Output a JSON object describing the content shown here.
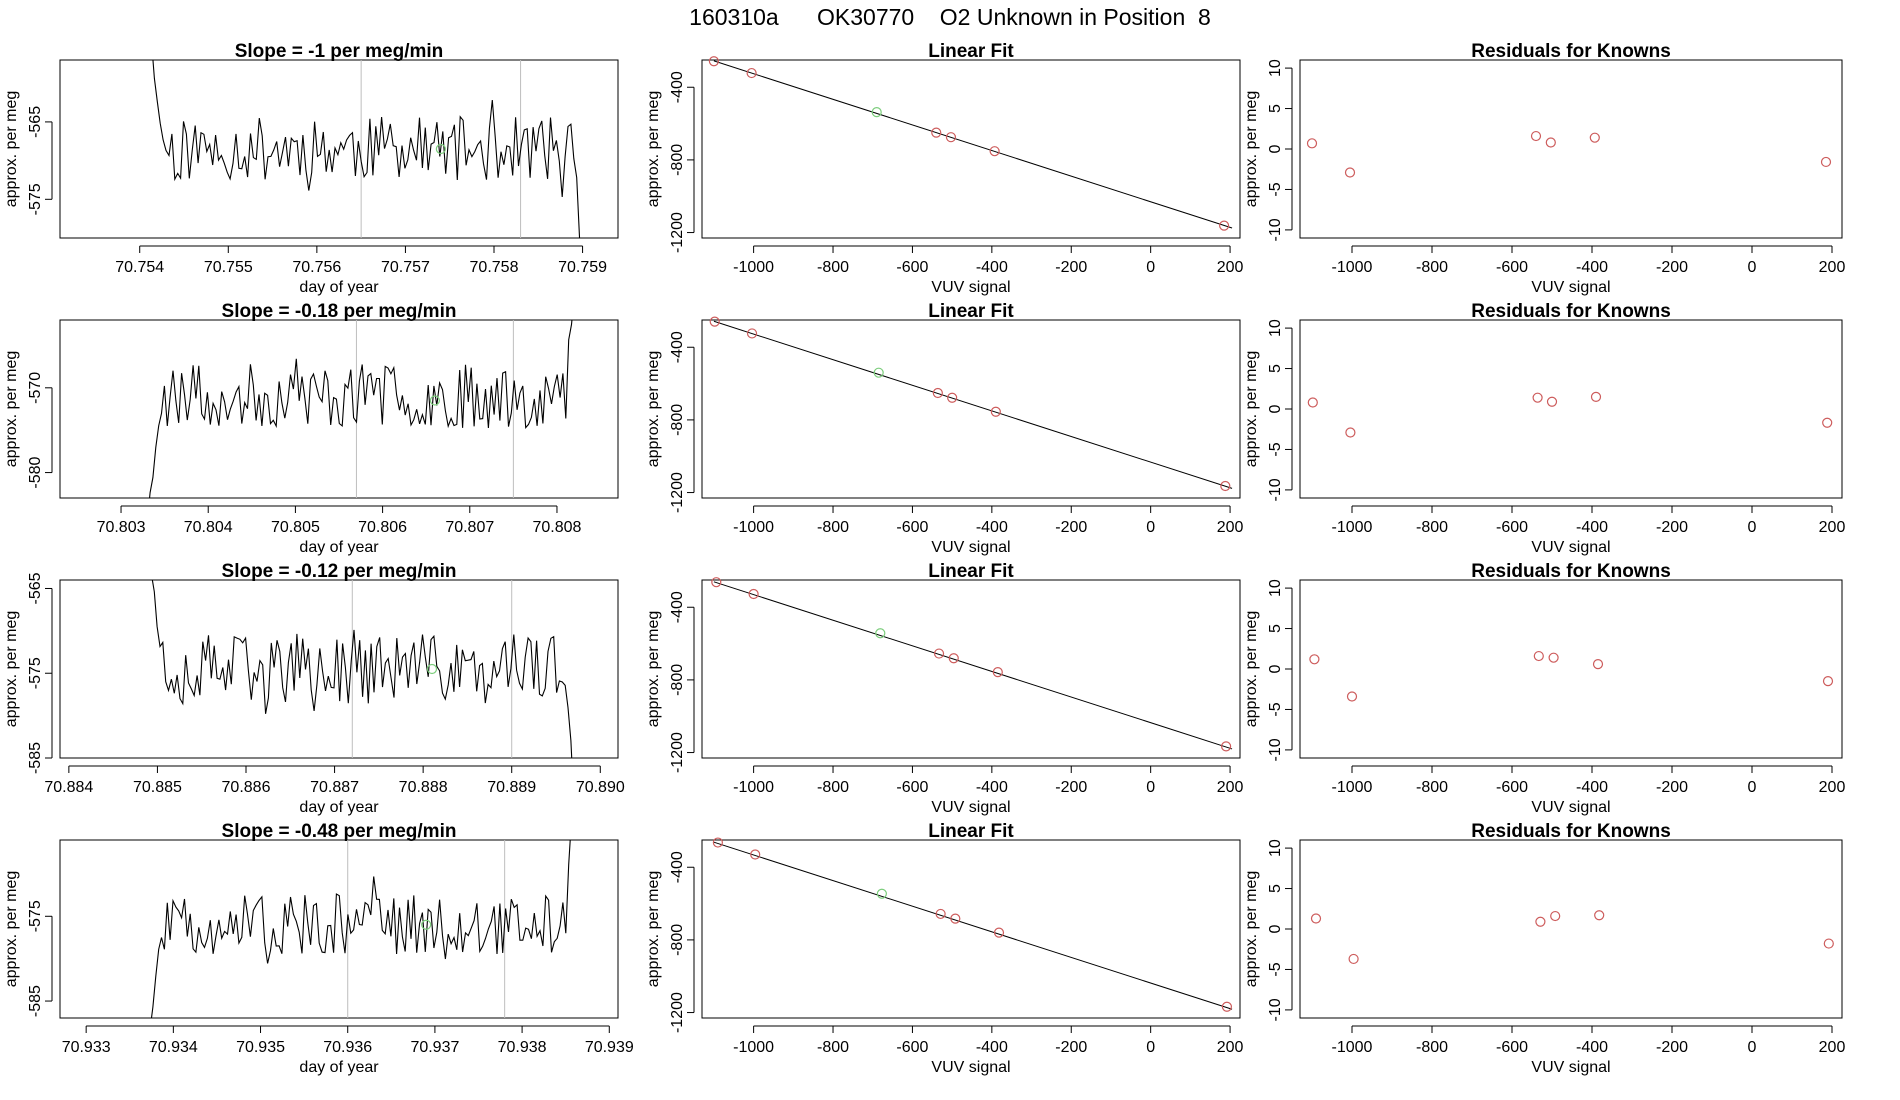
{
  "header": {
    "title": "160310a      OK30770    O2 Unknown in Position  8"
  },
  "colors": {
    "line": "#000000",
    "frame": "#000000",
    "vline": "#bebebe",
    "known": "#cd5c5c",
    "unknown": "#7ccd7c"
  },
  "rows": [
    {
      "time_series": {
        "title": "Slope =  -1  per meg/min",
        "xlabel": "day of year",
        "ylabel": "approx. per meg",
        "xticks": [
          "70.754",
          "70.755",
          "70.756",
          "70.757",
          "70.758",
          "70.759"
        ],
        "yticks": [
          "-565",
          "-575"
        ]
      },
      "fit": {
        "title": "Linear Fit",
        "xlabel": "VUV signal",
        "ylabel": "approx. per meg",
        "xticks": [
          "-1000",
          "-800",
          "-600",
          "-400",
          "-200",
          "0",
          "200"
        ],
        "yticks": [
          "-400",
          "-800",
          "-1200"
        ]
      },
      "residuals": {
        "title": "Residuals for Knowns",
        "xlabel": "VUV signal",
        "ylabel": "approx. per meg",
        "xticks": [
          "-1000",
          "-800",
          "-600",
          "-400",
          "-200",
          "0",
          "200"
        ],
        "yticks": [
          "10",
          "5",
          "0",
          "-5",
          "-10"
        ]
      }
    },
    {
      "time_series": {
        "title": "Slope =  -0.18  per meg/min",
        "xlabel": "day of year",
        "ylabel": "approx. per meg",
        "xticks": [
          "70.803",
          "70.804",
          "70.805",
          "70.806",
          "70.807",
          "70.808"
        ],
        "yticks": [
          "-570",
          "-580"
        ]
      },
      "fit": {
        "title": "Linear Fit",
        "xlabel": "VUV signal",
        "ylabel": "approx. per meg",
        "xticks": [
          "-1000",
          "-800",
          "-600",
          "-400",
          "-200",
          "0",
          "200"
        ],
        "yticks": [
          "-400",
          "-800",
          "-1200"
        ]
      },
      "residuals": {
        "title": "Residuals for Knowns",
        "xlabel": "VUV signal",
        "ylabel": "approx. per meg",
        "xticks": [
          "-1000",
          "-800",
          "-600",
          "-400",
          "-200",
          "0",
          "200"
        ],
        "yticks": [
          "10",
          "5",
          "0",
          "-5",
          "-10"
        ]
      }
    },
    {
      "time_series": {
        "title": "Slope =  -0.12  per meg/min",
        "xlabel": "day of year",
        "ylabel": "approx. per meg",
        "xticks": [
          "70.884",
          "70.885",
          "70.886",
          "70.887",
          "70.888",
          "70.889",
          "70.890"
        ],
        "yticks": [
          "-565",
          "-575",
          "-585"
        ]
      },
      "fit": {
        "title": "Linear Fit",
        "xlabel": "VUV signal",
        "ylabel": "approx. per meg",
        "xticks": [
          "-1000",
          "-800",
          "-600",
          "-400",
          "-200",
          "0",
          "200"
        ],
        "yticks": [
          "-400",
          "-800",
          "-1200"
        ]
      },
      "residuals": {
        "title": "Residuals for Knowns",
        "xlabel": "VUV signal",
        "ylabel": "approx. per meg",
        "xticks": [
          "-1000",
          "-800",
          "-600",
          "-400",
          "-200",
          "0",
          "200"
        ],
        "yticks": [
          "10",
          "5",
          "0",
          "-5",
          "-10"
        ]
      }
    },
    {
      "time_series": {
        "title": "Slope =  -0.48  per meg/min",
        "xlabel": "day of year",
        "ylabel": "approx. per meg",
        "xticks": [
          "70.933",
          "70.934",
          "70.935",
          "70.936",
          "70.937",
          "70.938",
          "70.939"
        ],
        "yticks": [
          "-575",
          "-585"
        ]
      },
      "fit": {
        "title": "Linear Fit",
        "xlabel": "VUV signal",
        "ylabel": "approx. per meg",
        "xticks": [
          "-1000",
          "-800",
          "-600",
          "-400",
          "-200",
          "0",
          "200"
        ],
        "yticks": [
          "-400",
          "-800",
          "-1200"
        ]
      },
      "residuals": {
        "title": "Residuals for Knowns",
        "xlabel": "VUV signal",
        "ylabel": "approx. per meg",
        "xticks": [
          "-1000",
          "-800",
          "-600",
          "-400",
          "-200",
          "0",
          "200"
        ],
        "yticks": [
          "10",
          "5",
          "0",
          "-5",
          "-10"
        ]
      }
    }
  ],
  "chart_data": [
    {
      "type": "line",
      "title": "Slope =  -1  per meg/min",
      "xlabel": "day of year",
      "ylabel": "approx. per meg",
      "xlim": [
        70.7531,
        70.7594
      ],
      "ylim": [
        -580,
        -557
      ],
      "x_start": 70.7541,
      "x_end": 70.759,
      "seed": 11,
      "mean": -568.5,
      "amp": 4.2,
      "start_tail": -552,
      "end_tail": -584,
      "vlines": [
        70.7565,
        70.7583
      ],
      "unknown_point": [
        70.7574,
        -568.5
      ]
    },
    {
      "type": "line",
      "title": "Slope =  -0.18  per meg/min",
      "xlabel": "day of year",
      "ylabel": "approx. per meg",
      "xlim": [
        70.8023,
        70.8087
      ],
      "ylim": [
        -583,
        -562
      ],
      "x_start": 70.8033,
      "x_end": 70.8082,
      "seed": 23,
      "mean": -571,
      "amp": 3.8,
      "start_tail": -586,
      "end_tail": -559,
      "vlines": [
        70.8057,
        70.8075
      ],
      "unknown_point": [
        70.8066,
        -571.5
      ]
    },
    {
      "type": "line",
      "title": "Slope =  -0.12  per meg/min",
      "xlabel": "day of year",
      "ylabel": "approx. per meg",
      "xlim": [
        70.8839,
        70.8902
      ],
      "ylim": [
        -585,
        -564
      ],
      "x_start": 70.8849,
      "x_end": 70.8897,
      "seed": 37,
      "mean": -574.5,
      "amp": 4.2,
      "start_tail": -560,
      "end_tail": -590,
      "vlines": [
        70.8872,
        70.889
      ],
      "unknown_point": [
        70.8881,
        -574.5
      ]
    },
    {
      "type": "line",
      "title": "Slope =  -0.48  per meg/min",
      "xlabel": "day of year",
      "ylabel": "approx. per meg",
      "xlim": [
        70.9327,
        70.9391
      ],
      "ylim": [
        -587,
        -566
      ],
      "x_start": 70.9337,
      "x_end": 70.9386,
      "seed": 51,
      "mean": -576,
      "amp": 3.5,
      "start_tail": -592,
      "end_tail": -558,
      "vlines": [
        70.936,
        70.9378
      ],
      "unknown_point": [
        70.9369,
        -576
      ]
    },
    {
      "type": "scatter",
      "title": "Linear Fit",
      "xlabel": "VUV signal",
      "ylabel": "approx. per meg",
      "xlim": [
        -1130,
        225
      ],
      "ylim": [
        -1230,
        -250
      ],
      "line": {
        "x": [
          -1100,
          205
        ],
        "y": [
          -255,
          -1175
        ]
      },
      "known": {
        "x": [
          -1100,
          -1005,
          -540,
          -503,
          -393,
          185
        ],
        "y": [
          -257,
          -322,
          -650,
          -675,
          -752,
          -1162
        ]
      },
      "unknown": {
        "x": [
          -690
        ],
        "y": [
          -537
        ]
      }
    },
    {
      "type": "scatter",
      "title": "Linear Fit",
      "xlabel": "VUV signal",
      "ylabel": "approx. per meg",
      "xlim": [
        -1130,
        225
      ],
      "ylim": [
        -1230,
        -250
      ],
      "line": {
        "x": [
          -1100,
          205
        ],
        "y": [
          -257,
          -1177
        ]
      },
      "known": {
        "x": [
          -1098,
          -1004,
          -536,
          -500,
          -390,
          188
        ],
        "y": [
          -259,
          -324,
          -652,
          -678,
          -755,
          -1164
        ]
      },
      "unknown": {
        "x": [
          -685
        ],
        "y": [
          -540
        ]
      }
    },
    {
      "type": "scatter",
      "title": "Linear Fit",
      "xlabel": "VUV signal",
      "ylabel": "approx. per meg",
      "xlim": [
        -1130,
        225
      ],
      "ylim": [
        -1230,
        -250
      ],
      "line": {
        "x": [
          -1100,
          205
        ],
        "y": [
          -260,
          -1180
        ]
      },
      "known": {
        "x": [
          -1094,
          -1000,
          -533,
          -496,
          -385,
          190
        ],
        "y": [
          -262,
          -327,
          -655,
          -681,
          -757,
          -1166
        ]
      },
      "unknown": {
        "x": [
          -681
        ],
        "y": [
          -543
        ]
      }
    },
    {
      "type": "scatter",
      "title": "Linear Fit",
      "xlabel": "VUV signal",
      "ylabel": "approx. per meg",
      "xlim": [
        -1130,
        225
      ],
      "ylim": [
        -1230,
        -250
      ],
      "line": {
        "x": [
          -1100,
          205
        ],
        "y": [
          -262,
          -1182
        ]
      },
      "known": {
        "x": [
          -1090,
          -996,
          -529,
          -492,
          -382,
          192
        ],
        "y": [
          -264,
          -330,
          -657,
          -683,
          -760,
          -1168
        ]
      },
      "unknown": {
        "x": [
          -677
        ],
        "y": [
          -546
        ]
      }
    },
    {
      "type": "scatter",
      "title": "Residuals for Knowns",
      "xlabel": "VUV signal",
      "ylabel": "approx. per meg",
      "xlim": [
        -1130,
        225
      ],
      "ylim": [
        -11,
        11
      ],
      "known": {
        "x": [
          -1100,
          -1005,
          -540,
          -503,
          -393,
          185
        ],
        "y": [
          0.7,
          -2.9,
          1.6,
          0.8,
          1.4,
          -1.6
        ]
      }
    },
    {
      "type": "scatter",
      "title": "Residuals for Knowns",
      "xlabel": "VUV signal",
      "ylabel": "approx. per meg",
      "xlim": [
        -1130,
        225
      ],
      "ylim": [
        -11,
        11
      ],
      "known": {
        "x": [
          -1098,
          -1004,
          -536,
          -500,
          -390,
          188
        ],
        "y": [
          0.8,
          -2.9,
          1.4,
          0.9,
          1.5,
          -1.7
        ]
      }
    },
    {
      "type": "scatter",
      "title": "Residuals for Knowns",
      "xlabel": "VUV signal",
      "ylabel": "approx. per meg",
      "xlim": [
        -1130,
        225
      ],
      "ylim": [
        -11,
        11
      ],
      "known": {
        "x": [
          -1094,
          -1000,
          -533,
          -496,
          -385,
          190
        ],
        "y": [
          1.2,
          -3.4,
          1.6,
          1.4,
          0.6,
          -1.5
        ]
      }
    },
    {
      "type": "scatter",
      "title": "Residuals for Knowns",
      "xlabel": "VUV signal",
      "ylabel": "approx. per meg",
      "xlim": [
        -1130,
        225
      ],
      "ylim": [
        -11,
        11
      ],
      "known": {
        "x": [
          -1090,
          -996,
          -529,
          -492,
          -382,
          192
        ],
        "y": [
          1.3,
          -3.7,
          0.9,
          1.6,
          1.7,
          -1.8
        ]
      }
    }
  ]
}
